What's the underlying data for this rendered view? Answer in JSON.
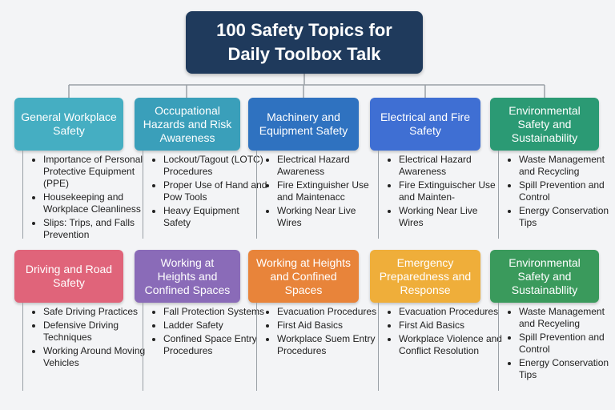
{
  "title": "100 Safety Topics for Daily Toolbox Talk",
  "groups": [
    {
      "label": "General Workplace Safety",
      "items": [
        "Importance of Personal Protective Equipment (PPE)",
        "Housekeeping and Workplace Cleanliness",
        "Slips: Trips, and Falls Prevention"
      ]
    },
    {
      "label": "Occupational Hazards and Risk Awareness",
      "items": [
        "Lockout/Tagout (LOTC) Procedures",
        "Proper Use of Hand and Pow Tools",
        "Heavy Equipment Safety"
      ]
    },
    {
      "label": "Machinery and Equipment Safety",
      "items": [
        "Electrical Hazard Awareness",
        "Fire Extinguisher Use and Maintenacc",
        "Working Near Live Wires"
      ]
    },
    {
      "label": "Electrical and Fire Safety",
      "items": [
        "Electrical Hazard Awareness",
        "Fire Extinguischer Use and Mainten-",
        "Working Near Live Wires"
      ]
    },
    {
      "label": "Environmental Safety and Sustainability",
      "items": [
        "Waste Management and Recycling",
        "Spill Prevention and Control",
        "Energy Conservation Tips"
      ]
    },
    {
      "label": "Driving and Road Safety",
      "items": [
        "Safe Driving Practices",
        "Defensive Driving Techniques",
        "Working Around Moving Vehicles"
      ]
    },
    {
      "label": "Working at Heights and Confined Spaces",
      "items": [
        "Fall Protection Systems",
        "Ladder  Safety",
        "Confined Space Entry Procedures"
      ]
    },
    {
      "label": "Working at Heights and Confined Spaces",
      "items": [
        "Evacuation Procedures",
        "First Aid Basics",
        "Workplace Suem Entry Procedures"
      ]
    },
    {
      "label": "Emergency Preparedness and Response",
      "items": [
        "Evacuation Procedures",
        "First Aid Basics",
        "Workplace Violence and Conflict Resolution"
      ]
    },
    {
      "label": "Environmental Safety and Sustainabllity",
      "items": [
        "Waste Management and Recyeling",
        "Spill Prevention and Control",
        "Energy Conservation Tips"
      ]
    }
  ]
}
